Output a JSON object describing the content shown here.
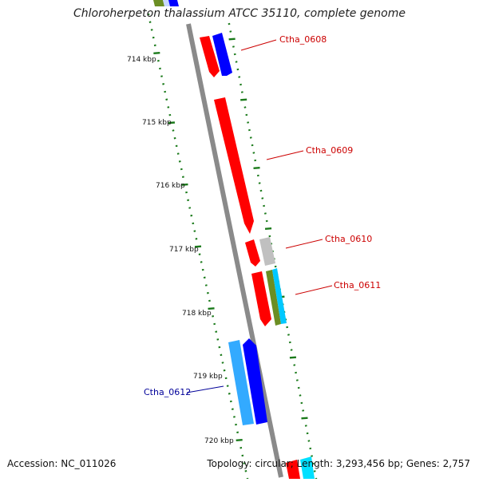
{
  "title": "Chloroherpeton thalassium ATCC 35110, complete genome",
  "footer": {
    "accession": "Accession: NC_011026",
    "summary": "Topology: circular; Length: 3,293,456 bp; Genes: 2,757"
  },
  "ticks": [
    "714 kbp",
    "715 kbp",
    "716 kbp",
    "717 kbp",
    "718 kbp",
    "719 kbp",
    "720 kbp"
  ],
  "gene_labels": [
    {
      "text": "Ctha_0608",
      "color": "#cc0000"
    },
    {
      "text": "Ctha_0609",
      "color": "#cc0000"
    },
    {
      "text": "Ctha_0610",
      "color": "#cc0000"
    },
    {
      "text": "Ctha_0611",
      "color": "#cc0000"
    },
    {
      "text": "Ctha_0612",
      "color": "#000099"
    }
  ],
  "colors": {
    "backbone": "#8a8a8a",
    "dots": "#1a7a1a",
    "red": "#ff0000",
    "blue": "#0000ff",
    "cyan": "#00c8ff",
    "lightblue": "#33aaff",
    "grey": "#c0c0c0",
    "olive": "#6b8e23"
  }
}
